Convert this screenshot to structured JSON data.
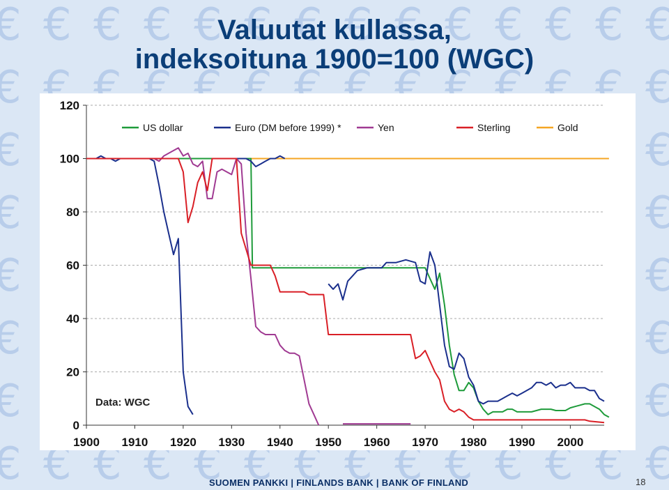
{
  "slide": {
    "title_line1": "Valuutat kullassa,",
    "title_line2": "indeksoituna 1900=100 (WGC)",
    "footer": "SUOMEN PANKKI | FINLANDS BANK | BANK OF FINLAND",
    "page_number": "18",
    "background_icon": "euro-sign"
  },
  "chart_data": {
    "type": "line",
    "title": "",
    "xlabel": "",
    "ylabel": "",
    "xlim": [
      1900,
      2007
    ],
    "ylim": [
      0,
      120
    ],
    "x_ticks": [
      1900,
      1910,
      1920,
      1930,
      1940,
      1950,
      1960,
      1970,
      1980,
      1990,
      2000
    ],
    "y_ticks": [
      0,
      20,
      40,
      60,
      80,
      100,
      120
    ],
    "grid": "horizontal dashed",
    "legend_position": "top",
    "annotation": "Data: WGC",
    "series": [
      {
        "name": "US dollar",
        "color": "#1e9b3a",
        "segments": [
          [
            [
              1900,
              100
            ],
            [
              1933,
              100
            ],
            [
              1934,
              100
            ],
            [
              1934.3,
              59
            ],
            [
              1970,
              59
            ],
            [
              1971,
              55
            ],
            [
              1972,
              51
            ],
            [
              1973,
              57
            ],
            [
              1974,
              45
            ],
            [
              1975,
              30
            ],
            [
              1976,
              19
            ],
            [
              1977,
              13
            ],
            [
              1978,
              13
            ],
            [
              1979,
              16
            ],
            [
              1980,
              14
            ],
            [
              1981,
              9
            ],
            [
              1982,
              6
            ],
            [
              1983,
              4
            ],
            [
              1984,
              5
            ],
            [
              1985,
              5
            ],
            [
              1986,
              5
            ],
            [
              1987,
              6
            ],
            [
              1988,
              6
            ],
            [
              1989,
              5
            ],
            [
              1990,
              5
            ],
            [
              1991,
              5
            ],
            [
              1992,
              5
            ],
            [
              1993,
              5.5
            ],
            [
              1994,
              6
            ],
            [
              1995,
              6
            ],
            [
              1996,
              6
            ],
            [
              1997,
              5.5
            ],
            [
              1998,
              5.5
            ],
            [
              1999,
              5.5
            ],
            [
              2000,
              6.5
            ],
            [
              2001,
              7
            ],
            [
              2002,
              7.5
            ],
            [
              2003,
              8
            ],
            [
              2004,
              8
            ],
            [
              2005,
              7
            ],
            [
              2006,
              6
            ],
            [
              2007,
              4
            ],
            [
              2008,
              3
            ]
          ]
        ]
      },
      {
        "name": "Euro (DM before 1999) *",
        "color": "#1a2f8c",
        "segments": [
          [
            [
              1900,
              100
            ],
            [
              1902,
              100
            ],
            [
              1903,
              101
            ],
            [
              1904,
              100
            ],
            [
              1905,
              100
            ],
            [
              1906,
              99
            ],
            [
              1907,
              100
            ],
            [
              1908,
              100
            ],
            [
              1910,
              100
            ],
            [
              1913,
              100
            ],
            [
              1914,
              99
            ],
            [
              1915,
              90
            ],
            [
              1916,
              80
            ],
            [
              1917,
              72
            ],
            [
              1918,
              64
            ],
            [
              1919,
              70
            ],
            [
              1920,
              20
            ],
            [
              1921,
              7
            ],
            [
              1922,
              4
            ]
          ],
          [
            [
              1930,
              100
            ],
            [
              1932,
              100
            ],
            [
              1933,
              100
            ],
            [
              1934,
              99
            ],
            [
              1935,
              97
            ],
            [
              1936,
              98
            ],
            [
              1937,
              99
            ],
            [
              1938,
              100
            ],
            [
              1939,
              100
            ],
            [
              1940,
              101
            ],
            [
              1941,
              100
            ]
          ],
          [
            [
              1950,
              53
            ],
            [
              1951,
              51
            ],
            [
              1952,
              53
            ],
            [
              1953,
              47
            ],
            [
              1954,
              54
            ],
            [
              1956,
              58
            ],
            [
              1958,
              59
            ],
            [
              1960,
              59
            ],
            [
              1961,
              59
            ],
            [
              1962,
              61
            ],
            [
              1964,
              61
            ],
            [
              1966,
              62
            ],
            [
              1968,
              61
            ],
            [
              1969,
              54
            ],
            [
              1970,
              53
            ],
            [
              1971,
              65
            ],
            [
              1972,
              60
            ],
            [
              1973,
              45
            ],
            [
              1974,
              30
            ],
            [
              1975,
              22
            ],
            [
              1976,
              21
            ],
            [
              1977,
              27
            ],
            [
              1978,
              25
            ],
            [
              1979,
              18
            ],
            [
              1980,
              15
            ],
            [
              1981,
              9
            ],
            [
              1982,
              8
            ],
            [
              1983,
              9
            ],
            [
              1984,
              9
            ],
            [
              1985,
              9
            ],
            [
              1986,
              10
            ],
            [
              1987,
              11
            ],
            [
              1988,
              12
            ],
            [
              1989,
              11
            ],
            [
              1990,
              12
            ],
            [
              1991,
              13
            ],
            [
              1992,
              14
            ],
            [
              1993,
              16
            ],
            [
              1994,
              16
            ],
            [
              1995,
              15
            ],
            [
              1996,
              16
            ],
            [
              1997,
              14
            ],
            [
              1998,
              15
            ],
            [
              1999,
              15
            ],
            [
              2000,
              16
            ],
            [
              2001,
              14
            ],
            [
              2002,
              14
            ],
            [
              2003,
              14
            ],
            [
              2004,
              13
            ],
            [
              2005,
              13
            ],
            [
              2006,
              10
            ],
            [
              2007,
              9
            ]
          ]
        ]
      },
      {
        "name": "Yen",
        "color": "#a03a92",
        "segments": [
          [
            [
              1900,
              100
            ],
            [
              1904,
              100
            ],
            [
              1905,
              100
            ],
            [
              1907,
              100
            ],
            [
              1908,
              100
            ],
            [
              1910,
              100
            ],
            [
              1912,
              100
            ],
            [
              1914,
              100
            ],
            [
              1915,
              99
            ],
            [
              1916,
              101
            ],
            [
              1917,
              102
            ],
            [
              1918,
              103
            ],
            [
              1919,
              104
            ],
            [
              1920,
              101
            ],
            [
              1921,
              102
            ],
            [
              1922,
              98
            ],
            [
              1923,
              97
            ],
            [
              1924,
              99
            ],
            [
              1925,
              85
            ],
            [
              1926,
              85
            ],
            [
              1927,
              95
            ],
            [
              1928,
              96
            ],
            [
              1929,
              95
            ],
            [
              1930,
              94
            ],
            [
              1931,
              100
            ],
            [
              1932,
              98
            ],
            [
              1933,
              72
            ],
            [
              1934,
              55
            ],
            [
              1935,
              37
            ],
            [
              1936,
              35
            ],
            [
              1937,
              34
            ],
            [
              1938,
              34
            ],
            [
              1939,
              34
            ],
            [
              1940,
              30
            ],
            [
              1941,
              28
            ],
            [
              1942,
              27
            ],
            [
              1943,
              27
            ],
            [
              1944,
              26
            ],
            [
              1946,
              8
            ],
            [
              1947,
              4
            ],
            [
              1948,
              0
            ]
          ],
          [
            [
              1953,
              0.5
            ],
            [
              1967,
              0.5
            ]
          ]
        ]
      },
      {
        "name": "Sterling",
        "color": "#d91f26",
        "segments": [
          [
            [
              1900,
              100
            ],
            [
              1914,
              100
            ],
            [
              1917,
              100
            ],
            [
              1919,
              100
            ],
            [
              1920,
              95
            ],
            [
              1921,
              76
            ],
            [
              1922,
              82
            ],
            [
              1923,
              91
            ],
            [
              1924,
              95
            ],
            [
              1925,
              88
            ],
            [
              1926,
              100
            ],
            [
              1931,
              100
            ],
            [
              1932,
              72
            ],
            [
              1933,
              66
            ],
            [
              1934,
              60
            ],
            [
              1935,
              60
            ],
            [
              1938,
              60
            ],
            [
              1939,
              56
            ],
            [
              1940,
              50
            ],
            [
              1945,
              50
            ],
            [
              1946,
              49
            ],
            [
              1949,
              49
            ],
            [
              1950,
              34
            ],
            [
              1967,
              34
            ],
            [
              1968,
              25
            ],
            [
              1969,
              26
            ],
            [
              1970,
              28
            ],
            [
              1971,
              24
            ],
            [
              1972,
              20
            ],
            [
              1973,
              17
            ],
            [
              1974,
              9
            ],
            [
              1975,
              6
            ],
            [
              1976,
              5
            ],
            [
              1977,
              6
            ],
            [
              1978,
              5
            ],
            [
              1979,
              3
            ],
            [
              1980,
              2
            ],
            [
              1981,
              2
            ],
            [
              1985,
              2
            ],
            [
              1990,
              2
            ],
            [
              1995,
              2
            ],
            [
              1999,
              2
            ],
            [
              2000,
              2
            ],
            [
              2003,
              2
            ],
            [
              2004,
              1.5
            ],
            [
              2007,
              1
            ]
          ]
        ]
      },
      {
        "name": "Gold",
        "color": "#f5a623",
        "segments": [
          [
            [
              1900,
              100
            ],
            [
              2008,
              100
            ]
          ]
        ]
      }
    ]
  }
}
